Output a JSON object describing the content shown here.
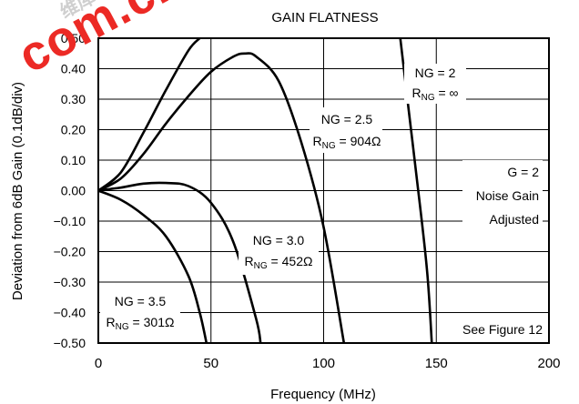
{
  "watermark": {
    "text": "com.cn",
    "subtext": "维库电子市场网"
  },
  "chart_data": {
    "type": "line",
    "title": "GAIN FLATNESS",
    "xlabel": "Frequency (MHz)",
    "ylabel": "Deviation from 6dB Gain (0.1dB/div)",
    "xlim": [
      0,
      200
    ],
    "ylim": [
      -0.5,
      0.5
    ],
    "xticks": [
      0,
      50,
      100,
      150,
      200
    ],
    "xtick_labels": [
      "0",
      "50",
      "100",
      "150",
      "200"
    ],
    "yticks": [
      0.5,
      0.4,
      0.3,
      0.2,
      0.1,
      0.0,
      -0.1,
      -0.2,
      -0.3,
      -0.4,
      -0.5
    ],
    "ytick_labels": [
      "0.50",
      "0.40",
      "0.30",
      "0.20",
      "0.10",
      "0.00",
      "−0.10",
      "−0.20",
      "−0.30",
      "−0.40",
      "−0.50"
    ],
    "grid": true,
    "series": [
      {
        "name": "NG = 2",
        "x": [
          0,
          10,
          20,
          30,
          40,
          45
        ],
        "y": [
          0.0,
          0.06,
          0.19,
          0.33,
          0.46,
          0.5
        ]
      },
      {
        "name": "NG = 2",
        "x": [
          134,
          138,
          142,
          146,
          148
        ],
        "y": [
          0.5,
          0.25,
          0.0,
          -0.27,
          -0.5
        ]
      },
      {
        "name": "NG = 2.5",
        "x": [
          0,
          10,
          20,
          30,
          40,
          50,
          60,
          65,
          70,
          80,
          90,
          100,
          109
        ],
        "y": [
          0.0,
          0.04,
          0.12,
          0.22,
          0.31,
          0.39,
          0.44,
          0.45,
          0.44,
          0.36,
          0.16,
          -0.12,
          -0.5
        ]
      },
      {
        "name": "NG = 3.0",
        "x": [
          0,
          10,
          20,
          30,
          40,
          50,
          60,
          70,
          72
        ],
        "y": [
          0.0,
          0.01,
          0.023,
          0.025,
          0.015,
          -0.04,
          -0.17,
          -0.42,
          -0.5
        ]
      },
      {
        "name": "NG = 3.5",
        "x": [
          0,
          10,
          20,
          30,
          40,
          45,
          48
        ],
        "y": [
          0.0,
          -0.03,
          -0.08,
          -0.15,
          -0.28,
          -0.4,
          -0.5
        ]
      }
    ],
    "annotations": [
      {
        "id": "ng2",
        "label": "NG = 2",
        "r": "R",
        "sub": "NG",
        "value": " = ∞"
      },
      {
        "id": "ng25",
        "label": "NG = 2.5",
        "r": "R",
        "sub": "NG",
        "value": " = 904Ω"
      },
      {
        "id": "ng30",
        "label": "NG = 3.0",
        "r": "R",
        "sub": "NG",
        "value": " = 452Ω"
      },
      {
        "id": "ng35",
        "label": "NG = 3.5",
        "r": "R",
        "sub": "NG",
        "value": " = 301Ω"
      }
    ],
    "note": [
      "G = 2",
      "Noise Gain",
      "Adjusted"
    ],
    "corner_note": "See Figure 12"
  }
}
